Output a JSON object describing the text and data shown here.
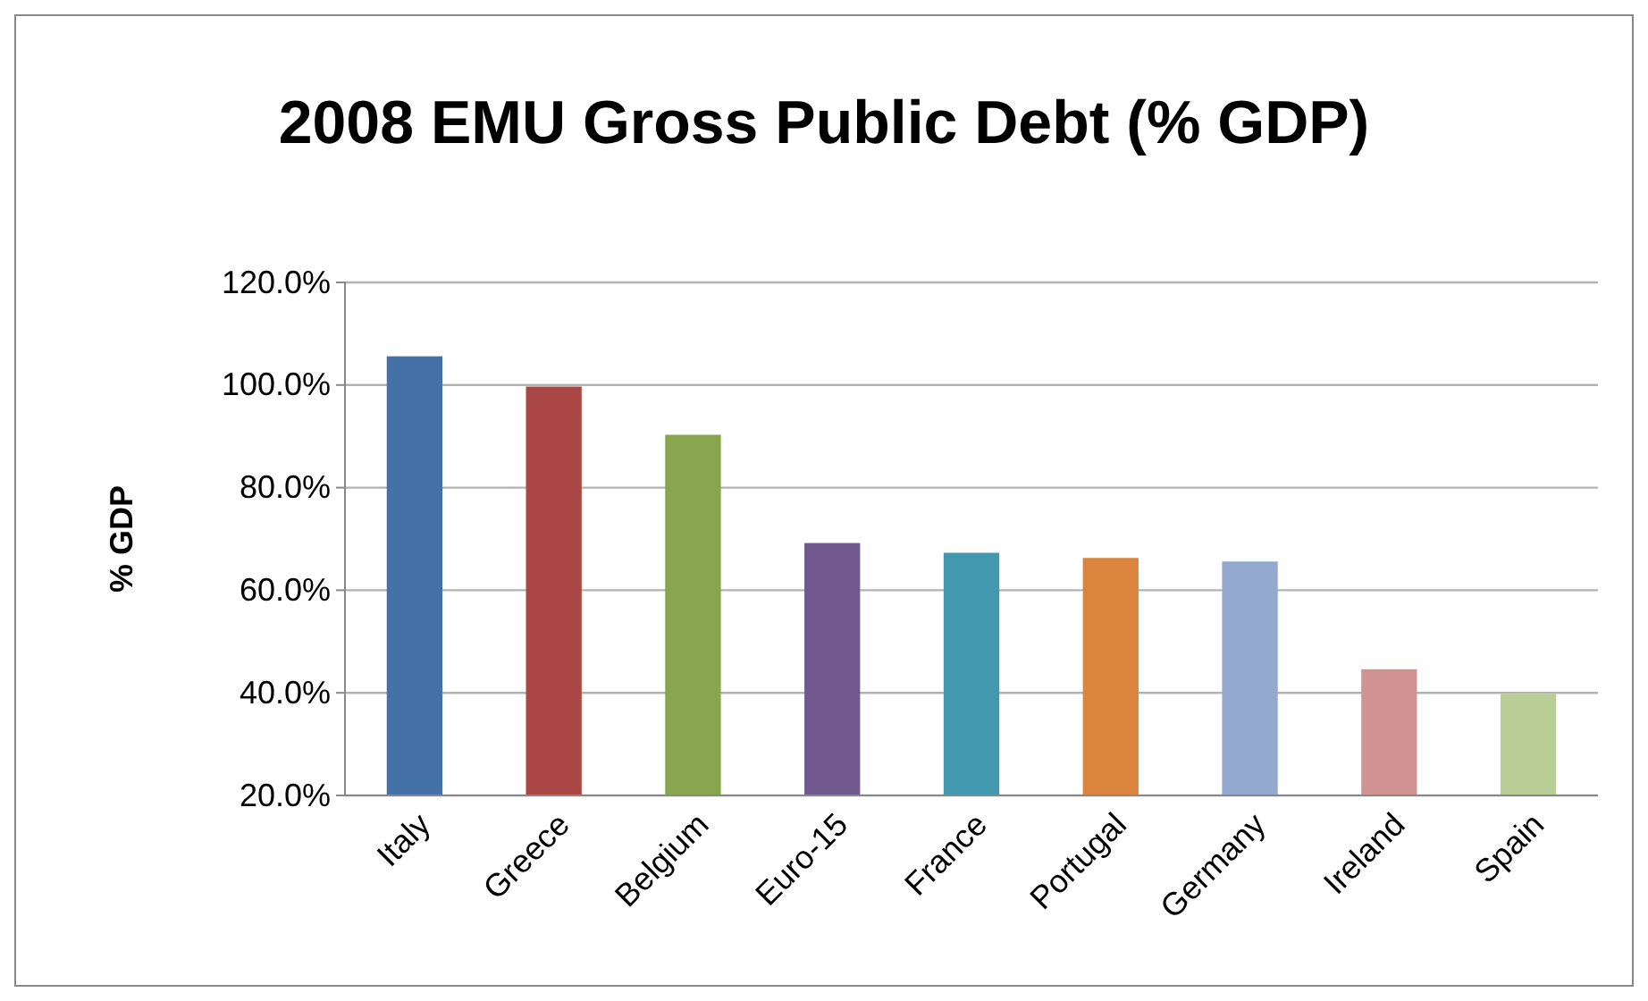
{
  "chart_data": {
    "type": "bar",
    "title": "2008 EMU Gross Public Debt (% GDP)",
    "ylabel": "% GDP",
    "categories": [
      "Italy",
      "Greece",
      "Belgium",
      "Euro-15",
      "France",
      "Portugal",
      "Germany",
      "Ireland",
      "Spain"
    ],
    "values": [
      105.6,
      99.7,
      90.3,
      69.2,
      67.3,
      66.3,
      65.6,
      44.6,
      39.8
    ],
    "colors": [
      "#4472a8",
      "#aa4643",
      "#89a54e",
      "#71588f",
      "#4198af",
      "#db843d",
      "#93a9cf",
      "#d19392",
      "#b9cd96"
    ],
    "ylim": [
      20,
      120
    ],
    "yticks": [
      {
        "value": 20,
        "label": "20.0%"
      },
      {
        "value": 40,
        "label": "40.0%"
      },
      {
        "value": 60,
        "label": "60.0%"
      },
      {
        "value": 80,
        "label": "80.0%"
      },
      {
        "value": 100,
        "label": "100.0%"
      },
      {
        "value": 120,
        "label": "120.0%"
      }
    ],
    "grid": "y"
  }
}
